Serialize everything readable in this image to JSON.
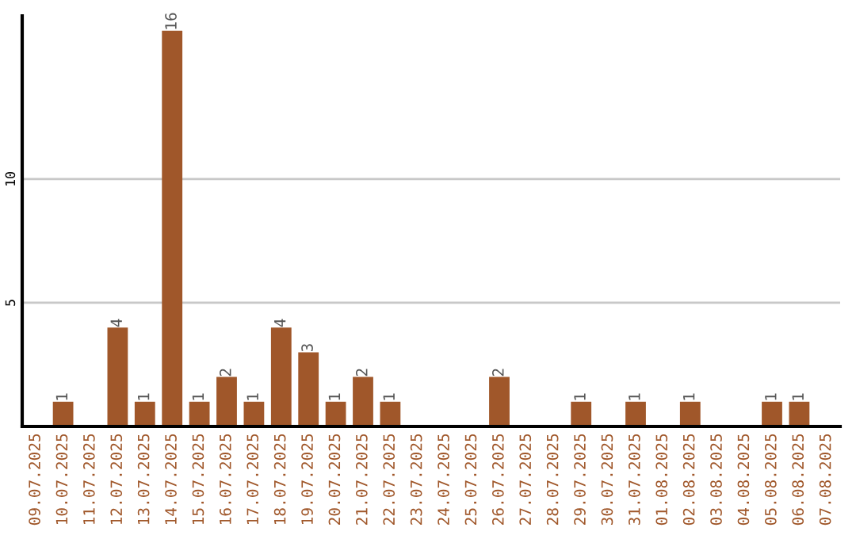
{
  "chart_data": {
    "type": "bar",
    "categories": [
      "09.07.2025",
      "10.07.2025",
      "11.07.2025",
      "12.07.2025",
      "13.07.2025",
      "14.07.2025",
      "15.07.2025",
      "16.07.2025",
      "17.07.2025",
      "18.07.2025",
      "19.07.2025",
      "20.07.2025",
      "21.07.2025",
      "22.07.2025",
      "23.07.2025",
      "24.07.2025",
      "25.07.2025",
      "26.07.2025",
      "27.07.2025",
      "28.07.2025",
      "29.07.2025",
      "30.07.2025",
      "31.07.2025",
      "01.08.2025",
      "02.08.2025",
      "03.08.2025",
      "04.08.2025",
      "05.08.2025",
      "06.08.2025",
      "07.08.2025"
    ],
    "values": [
      0,
      1,
      0,
      4,
      1,
      16,
      1,
      2,
      1,
      4,
      3,
      1,
      2,
      1,
      0,
      0,
      0,
      2,
      0,
      0,
      1,
      0,
      1,
      0,
      1,
      0,
      0,
      1,
      1,
      0
    ],
    "value_labels": [
      null,
      "1",
      null,
      "4",
      "1",
      "16",
      "1",
      "2",
      "1",
      "4",
      "3",
      "1",
      "2",
      "1",
      null,
      null,
      null,
      "2",
      null,
      null,
      "1",
      null,
      "1",
      null,
      "1",
      null,
      null,
      "1",
      "1",
      null
    ],
    "color": "#a0572a",
    "ylim": [
      0,
      16.6
    ],
    "yticks": [
      5,
      10
    ],
    "grid": "y",
    "legend": false
  }
}
